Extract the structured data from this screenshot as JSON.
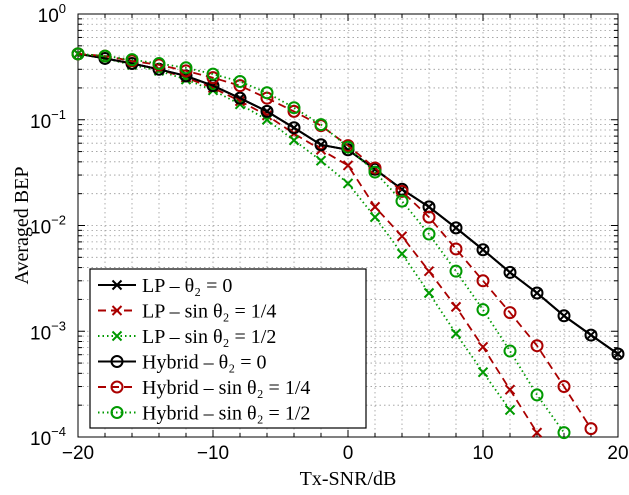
{
  "chart_data": {
    "type": "line",
    "xlabel": "Tx-SNR/dB",
    "ylabel": "Averaged BEP",
    "xlim": [
      -20,
      20
    ],
    "ylim": [
      0.0001,
      1
    ],
    "yscale": "log",
    "grid": true,
    "legend_position": "bottom-left",
    "x_ticks": [
      -20,
      -10,
      0,
      10,
      20
    ],
    "y_ticks": [
      1,
      0.1,
      0.01,
      0.001,
      0.0001
    ],
    "x_tick_labels": [
      "−20",
      "−10",
      "0",
      "10",
      "20"
    ],
    "y_tick_labels": [
      {
        "base": "10",
        "exp": "0"
      },
      {
        "base": "10",
        "exp": "−1"
      },
      {
        "base": "10",
        "exp": "−2"
      },
      {
        "base": "10",
        "exp": "−3"
      },
      {
        "base": "10",
        "exp": "−4"
      }
    ],
    "series": [
      {
        "name": "LP – θ₂ = 0",
        "color": "#000000",
        "dash": "solid",
        "marker": "x",
        "x": [
          -20,
          -18,
          -16,
          -14,
          -12,
          -10,
          -8,
          -6,
          -4,
          -2,
          0,
          2,
          4,
          6,
          8,
          10,
          12,
          14,
          16,
          18,
          20
        ],
        "y": [
          0.42,
          0.38,
          0.34,
          0.3,
          0.26,
          0.21,
          0.16,
          0.12,
          0.084,
          0.058,
          0.052,
          0.034,
          0.022,
          0.015,
          0.0095,
          0.0059,
          0.0036,
          0.0023,
          0.0014,
          0.00092,
          0.00061
        ]
      },
      {
        "name": "LP – sin θ₂ = 1/4",
        "color": "#aa0000",
        "dash": "dashed",
        "marker": "x",
        "x": [
          -20,
          -18,
          -16,
          -14,
          -12,
          -10,
          -8,
          -6,
          -4,
          -2,
          0,
          2,
          4,
          6,
          8,
          10,
          12,
          14
        ],
        "y": [
          0.42,
          0.38,
          0.34,
          0.3,
          0.25,
          0.2,
          0.15,
          0.11,
          0.074,
          0.052,
          0.037,
          0.015,
          0.0079,
          0.0037,
          0.0017,
          0.00071,
          0.00028,
          0.00011
        ]
      },
      {
        "name": "LP – sin θ₂ = 1/2",
        "color": "#009900",
        "dash": "dotted",
        "marker": "x",
        "x": [
          -20,
          -18,
          -16,
          -14,
          -12,
          -10,
          -8,
          -6,
          -4,
          -2,
          0,
          2,
          4,
          6,
          8,
          10,
          12
        ],
        "y": [
          0.42,
          0.38,
          0.33,
          0.29,
          0.24,
          0.19,
          0.14,
          0.1,
          0.064,
          0.041,
          0.025,
          0.012,
          0.0054,
          0.0023,
          0.00095,
          0.00041,
          0.00018
        ]
      },
      {
        "name": "Hybrid – θ₂ = 0",
        "color": "#000000",
        "dash": "solid",
        "marker": "o",
        "x": [
          -20,
          -18,
          -16,
          -14,
          -12,
          -10,
          -8,
          -6,
          -4,
          -2,
          0,
          2,
          4,
          6,
          8,
          10,
          12,
          14,
          16,
          18,
          20
        ],
        "y": [
          0.42,
          0.38,
          0.34,
          0.3,
          0.26,
          0.21,
          0.16,
          0.12,
          0.084,
          0.058,
          0.052,
          0.034,
          0.022,
          0.015,
          0.0095,
          0.0059,
          0.0036,
          0.0023,
          0.0014,
          0.00092,
          0.00061
        ]
      },
      {
        "name": "Hybrid – sin θ₂ = 1/4",
        "color": "#aa0000",
        "dash": "dashed",
        "marker": "o",
        "x": [
          -20,
          -18,
          -16,
          -14,
          -12,
          -10,
          -8,
          -6,
          -4,
          -2,
          0,
          2,
          4,
          6,
          8,
          10,
          12,
          14,
          16,
          18
        ],
        "y": [
          0.42,
          0.4,
          0.36,
          0.33,
          0.29,
          0.25,
          0.21,
          0.16,
          0.12,
          0.088,
          0.057,
          0.035,
          0.021,
          0.012,
          0.006,
          0.003,
          0.0015,
          0.00073,
          0.0003,
          0.00012
        ]
      },
      {
        "name": "Hybrid – sin θ₂ = 1/2",
        "color": "#009900",
        "dash": "dotted",
        "marker": "o",
        "x": [
          -20,
          -18,
          -16,
          -14,
          -12,
          -10,
          -8,
          -6,
          -4,
          -2,
          0,
          2,
          4,
          6,
          8,
          10,
          12,
          14,
          16
        ],
        "y": [
          0.42,
          0.4,
          0.37,
          0.34,
          0.31,
          0.27,
          0.23,
          0.18,
          0.13,
          0.09,
          0.055,
          0.032,
          0.017,
          0.0083,
          0.0037,
          0.0016,
          0.00065,
          0.00025,
          0.00011
        ]
      }
    ],
    "legend_entries": [
      {
        "prefix": "LP – ",
        "sin": false,
        "rhs": "0"
      },
      {
        "prefix": "LP – ",
        "sin": true,
        "rhs": "1/4"
      },
      {
        "prefix": "LP – ",
        "sin": true,
        "rhs": "1/2"
      },
      {
        "prefix": "Hybrid – ",
        "sin": true,
        "rhs": "0",
        "nosin": true
      },
      {
        "prefix": "Hybrid – ",
        "sin": true,
        "rhs": "1/4"
      },
      {
        "prefix": "Hybrid – ",
        "sin": true,
        "rhs": "1/2"
      }
    ]
  }
}
